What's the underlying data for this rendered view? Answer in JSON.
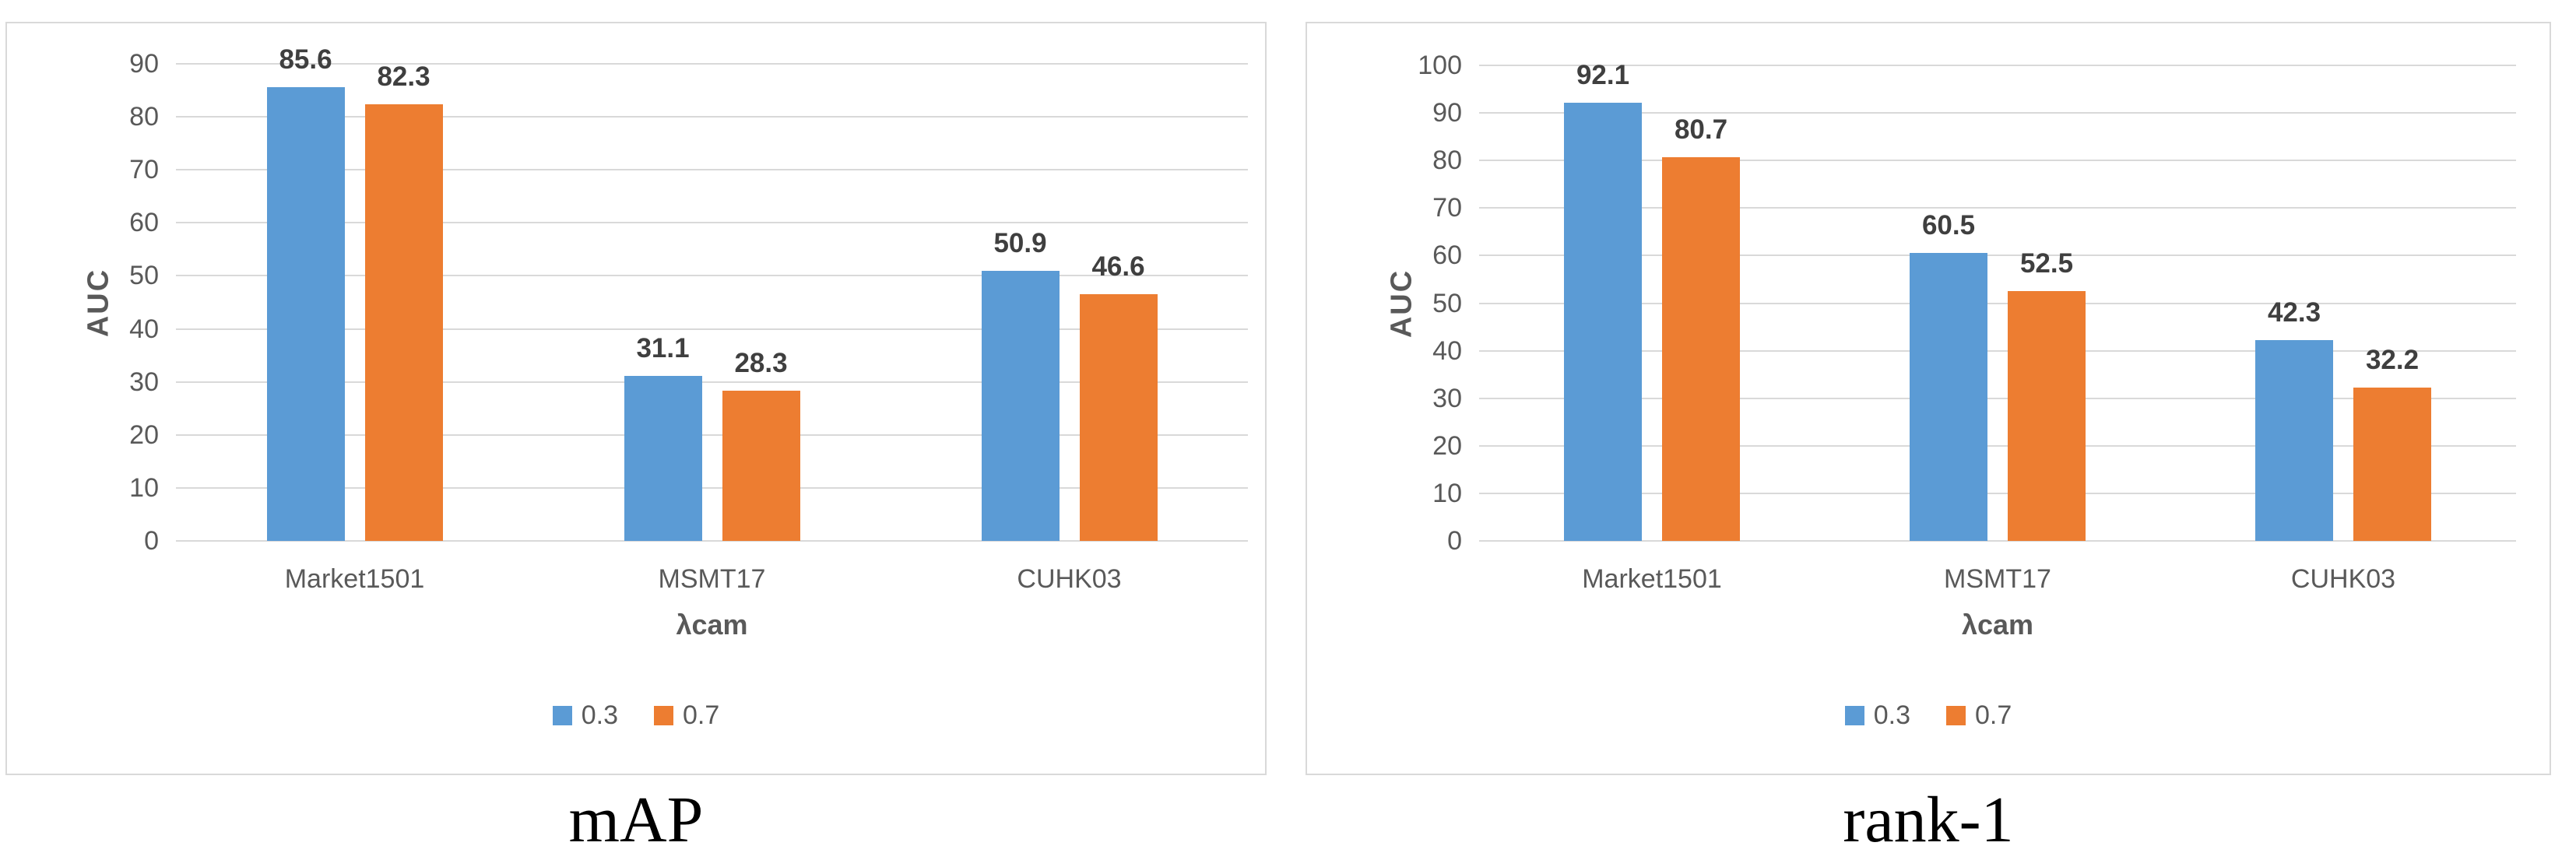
{
  "figure": {
    "gridline_color": "#D9D9D9",
    "panel_border_color": "#D9D9D9",
    "axis_text_color": "#595959",
    "data_label_color": "#3F3F3F",
    "series_colors": {
      "0.3": "#5B9BD5",
      "0.7": "#ED7D31"
    }
  },
  "chart_data": [
    {
      "type": "bar",
      "title": "mAP",
      "xlabel": "λcam",
      "ylabel": "AUC",
      "ylim": [
        0,
        90
      ],
      "ytick_step": 10,
      "grid": true,
      "legend_position": "bottom",
      "categories": [
        "Market1501",
        "MSMT17",
        "CUHK03"
      ],
      "series": [
        {
          "name": "0.3",
          "color": "#5B9BD5",
          "values": [
            85.6,
            31.1,
            50.9
          ]
        },
        {
          "name": "0.7",
          "color": "#ED7D31",
          "values": [
            82.3,
            28.3,
            46.6
          ]
        }
      ]
    },
    {
      "type": "bar",
      "title": "rank-1",
      "xlabel": "λcam",
      "ylabel": "AUC",
      "ylim": [
        0,
        100
      ],
      "ytick_step": 10,
      "grid": true,
      "legend_position": "bottom",
      "categories": [
        "Market1501",
        "MSMT17",
        "CUHK03"
      ],
      "series": [
        {
          "name": "0.3",
          "color": "#5B9BD5",
          "values": [
            92.1,
            60.5,
            42.3
          ]
        },
        {
          "name": "0.7",
          "color": "#ED7D31",
          "values": [
            80.7,
            52.5,
            32.2
          ]
        }
      ]
    }
  ]
}
